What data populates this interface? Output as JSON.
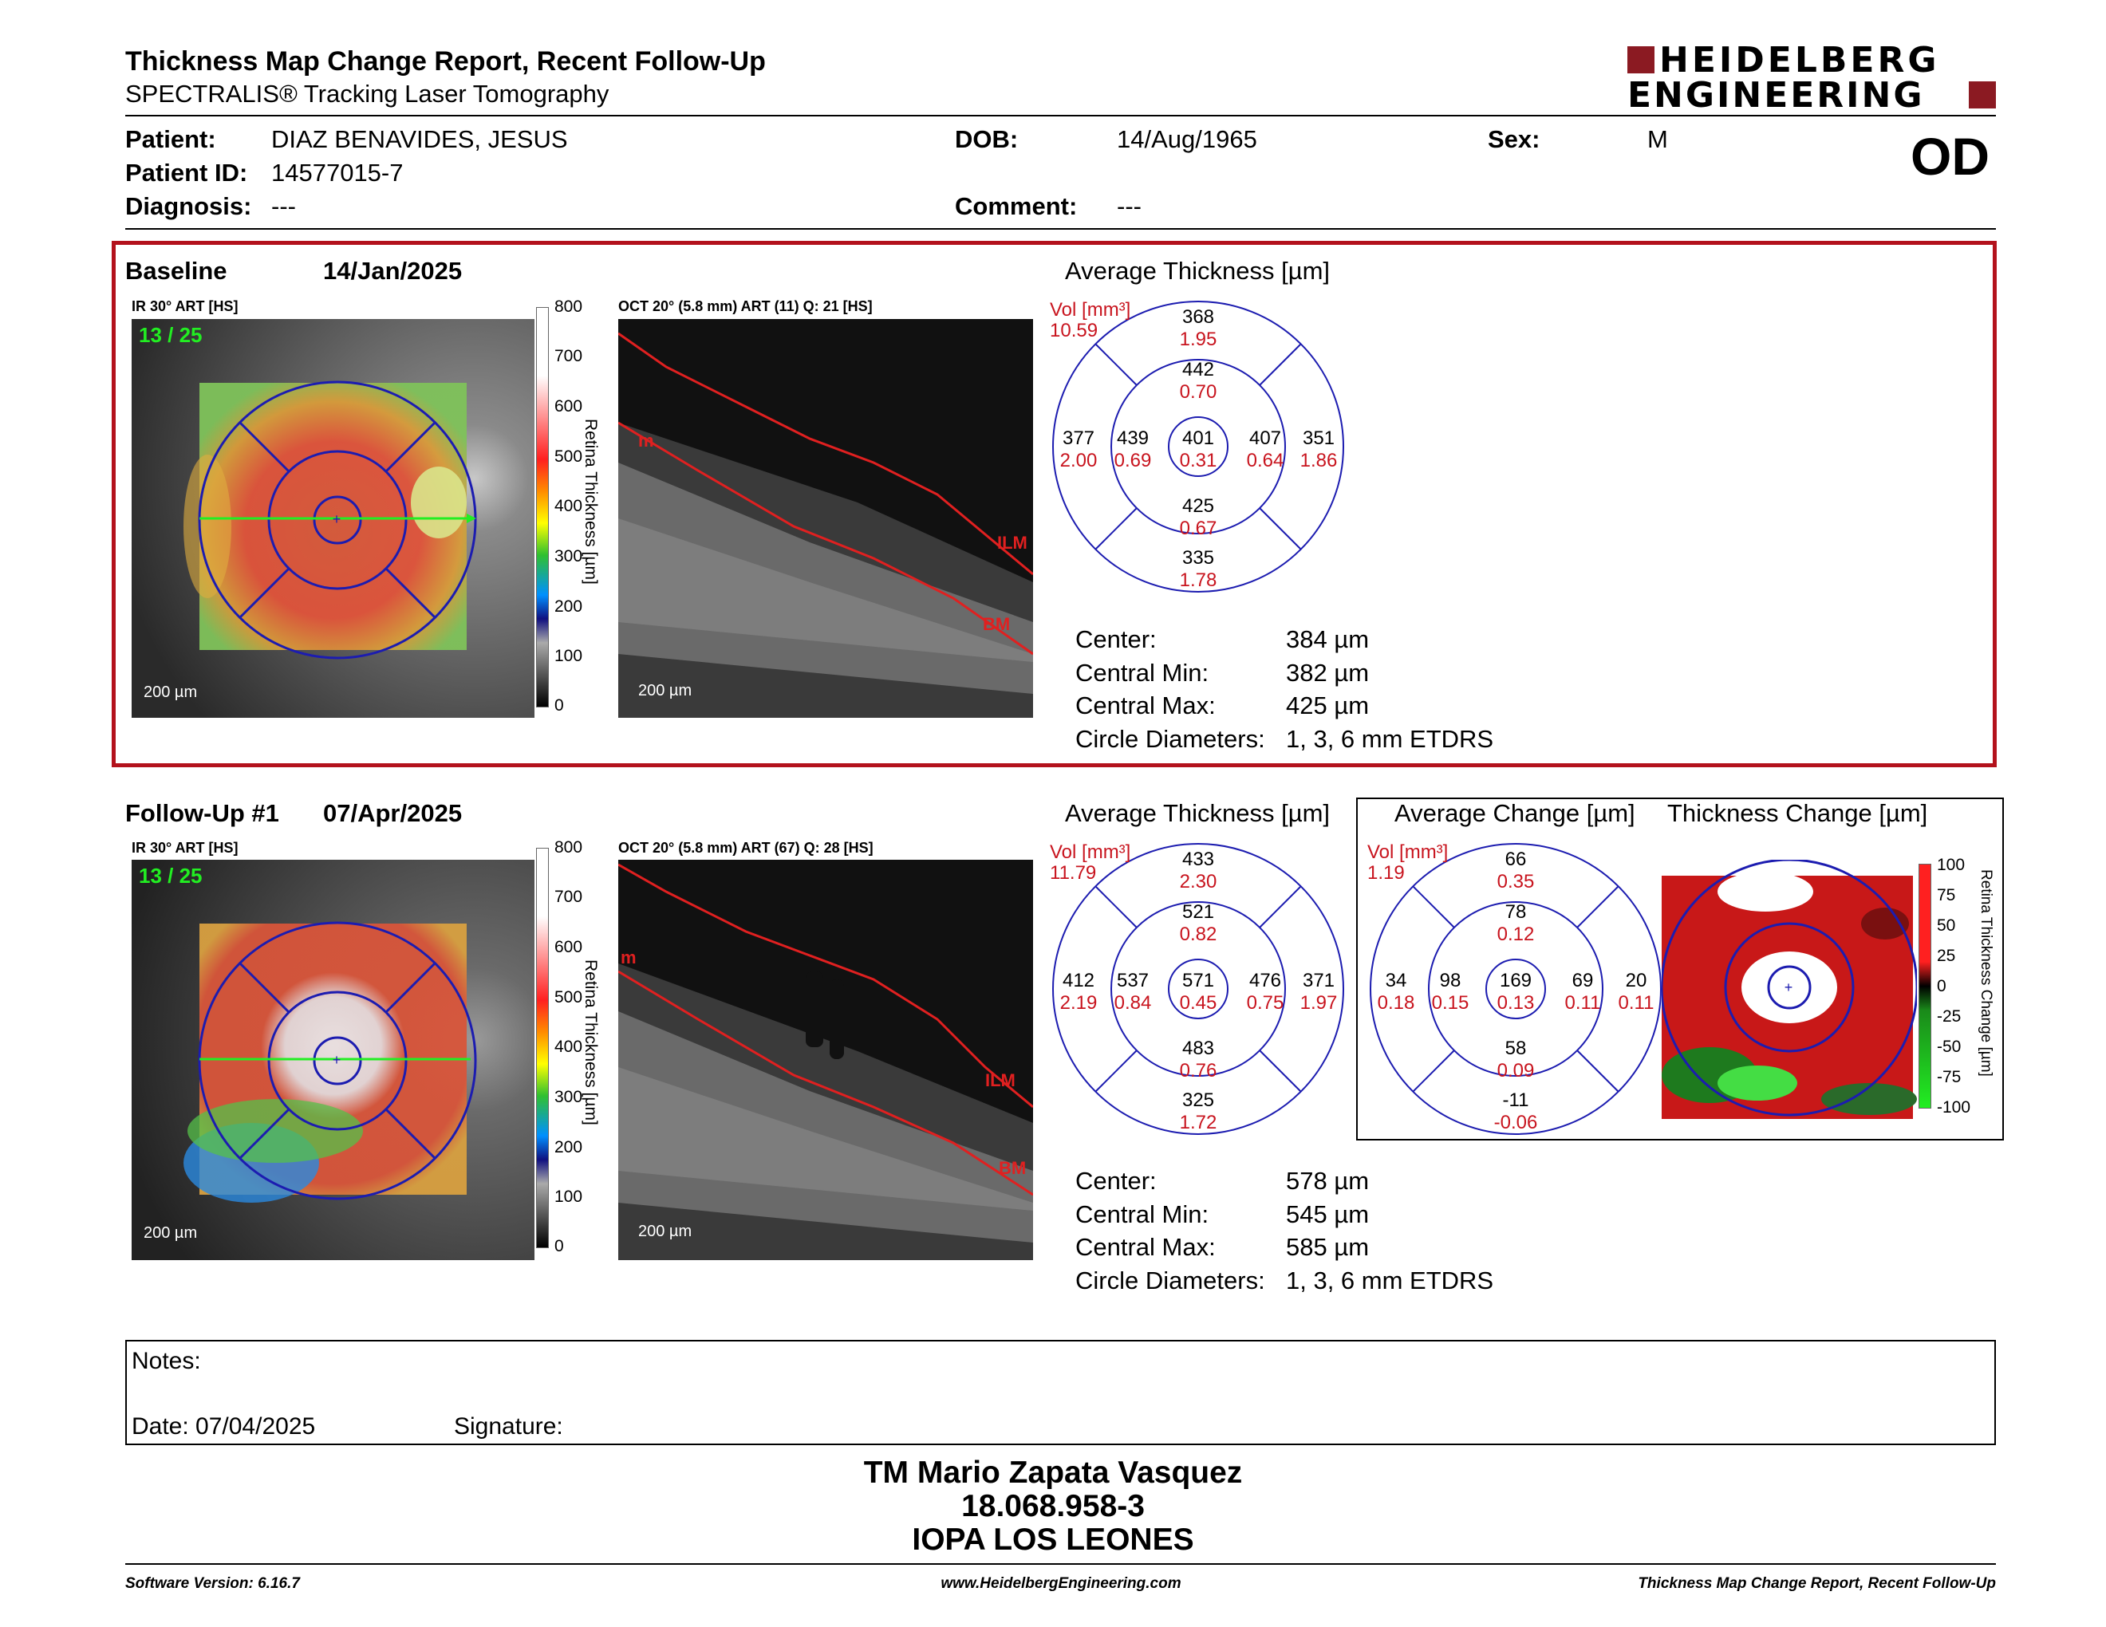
{
  "header": {
    "title": "Thickness Map Change Report, Recent Follow-Up",
    "subtitle": "SPECTRALIS® Tracking Laser Tomography",
    "logo_line1": "HEIDELBERG",
    "logo_line2": "ENGINEERING",
    "eye": "OD"
  },
  "patient": {
    "patient_label": "Patient:",
    "patient_value": "DIAZ BENAVIDES, JESUS",
    "id_label": "Patient ID:",
    "id_value": "14577015-7",
    "diagnosis_label": "Diagnosis:",
    "diagnosis_value": "---",
    "dob_label": "DOB:",
    "dob_value": "14/Aug/1965",
    "comment_label": "Comment:",
    "comment_value": "---",
    "sex_label": "Sex:",
    "sex_value": "M"
  },
  "baseline": {
    "label": "Baseline",
    "date": "14/Jan/2025",
    "ir_label": "IR 30° ART [HS]",
    "frame": "13 / 25",
    "ir_scale": "200 µm",
    "oct_label": "OCT 20° (5.8 mm) ART (11) Q: 21 [HS]",
    "oct_scale": "200 µm",
    "colorbar": [
      "800",
      "700",
      "600",
      "500",
      "400",
      "300",
      "200",
      "100",
      "0"
    ],
    "colorbar_title": "Retina Thickness [µm]",
    "avg_title": "Average Thickness [µm]",
    "vol_label": "Vol [mm³]",
    "vol_total": "10.59",
    "sectors": {
      "outer_top": [
        "368",
        "1.95"
      ],
      "inner_top": [
        "442",
        "0.70"
      ],
      "outer_left": [
        "377",
        "2.00"
      ],
      "inner_left": [
        "439",
        "0.69"
      ],
      "center": [
        "401",
        "0.31"
      ],
      "inner_right": [
        "407",
        "0.64"
      ],
      "outer_right": [
        "351",
        "1.86"
      ],
      "inner_bottom": [
        "425",
        "0.67"
      ],
      "outer_bottom": [
        "335",
        "1.78"
      ]
    },
    "stats": {
      "center_label": "Center:",
      "center": "384 µm",
      "min_label": "Central Min:",
      "min": "382 µm",
      "max_label": "Central Max:",
      "max": "425 µm",
      "diam_label": "Circle Diameters:",
      "diam": "1, 3, 6 mm ETDRS"
    },
    "ilm": "ILM",
    "bm": "BM",
    "m": "m"
  },
  "followup": {
    "label": "Follow-Up #1",
    "date": "07/Apr/2025",
    "ir_label": "IR 30° ART [HS]",
    "frame": "13 / 25",
    "ir_scale": "200 µm",
    "oct_label": "OCT 20° (5.8 mm) ART (67) Q: 28 [HS]",
    "oct_scale": "200 µm",
    "colorbar": [
      "800",
      "700",
      "600",
      "500",
      "400",
      "300",
      "200",
      "100",
      "0"
    ],
    "colorbar_title": "Retina Thickness [µm]",
    "avg_title": "Average Thickness [µm]",
    "vol_label": "Vol [mm³]",
    "vol_total": "11.79",
    "sectors": {
      "outer_top": [
        "433",
        "2.30"
      ],
      "inner_top": [
        "521",
        "0.82"
      ],
      "outer_left": [
        "412",
        "2.19"
      ],
      "inner_left": [
        "537",
        "0.84"
      ],
      "center": [
        "571",
        "0.45"
      ],
      "inner_right": [
        "476",
        "0.75"
      ],
      "outer_right": [
        "371",
        "1.97"
      ],
      "inner_bottom": [
        "483",
        "0.76"
      ],
      "outer_bottom": [
        "325",
        "1.72"
      ]
    },
    "stats": {
      "center_label": "Center:",
      "center": "578 µm",
      "min_label": "Central Min:",
      "min": "545 µm",
      "max_label": "Central Max:",
      "max": "585 µm",
      "diam_label": "Circle Diameters:",
      "diam": "1, 3, 6 mm ETDRS"
    },
    "ilm": "ILM",
    "bm": "BM",
    "m": "m"
  },
  "change": {
    "avg_title": "Average Change [µm]",
    "map_title": "Thickness Change [µm]",
    "vol_label": "Vol [mm³]",
    "vol_total": "1.19",
    "sectors": {
      "outer_top": [
        "66",
        "0.35"
      ],
      "inner_top": [
        "78",
        "0.12"
      ],
      "outer_left": [
        "34",
        "0.18"
      ],
      "inner_left": [
        "98",
        "0.15"
      ],
      "center": [
        "169",
        "0.13"
      ],
      "inner_right": [
        "69",
        "0.11"
      ],
      "outer_right": [
        "20",
        "0.11"
      ],
      "inner_bottom": [
        "58",
        "0.09"
      ],
      "outer_bottom": [
        "-11",
        "-0.06"
      ]
    },
    "colorbar": [
      "100",
      "75",
      "50",
      "25",
      "0",
      "-25",
      "-50",
      "-75",
      "-100"
    ],
    "colorbar_title": "Retina Thickness Change [µm]"
  },
  "notes": {
    "notes_label": "Notes:",
    "date_label": "Date: 07/04/2025",
    "signature_label": "Signature:"
  },
  "signature_block": {
    "name": "TM Mario Zapata Vasquez",
    "id": "18.068.958-3",
    "place": "IOPA LOS LEONES"
  },
  "footer": {
    "software": "Software Version: 6.16.7",
    "url": "www.HeidelbergEngineering.com",
    "report": "Thickness Map Change Report, Recent Follow-Up"
  },
  "colors": {
    "brand": "#8b1a22",
    "etdrs_line": "#1c1cb0",
    "vol_text": "#c8141e",
    "frame_red": "#b3121c",
    "frame_green": "#22ee22"
  }
}
